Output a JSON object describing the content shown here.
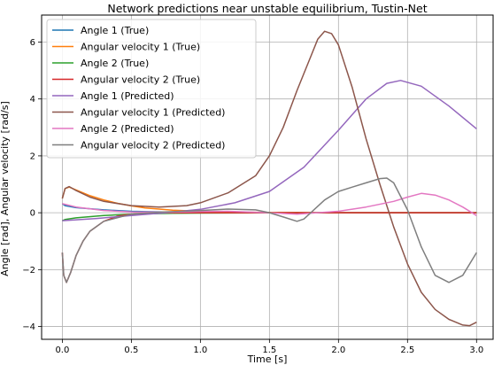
{
  "chart_data": {
    "type": "line",
    "title": "Network predictions near unstable equilibrium, Tustin-Net",
    "xlabel": "Time [s]",
    "ylabel": "Angle [rad], Angular velocity [rad/s]",
    "xlim": [
      -0.15,
      3.12
    ],
    "ylim": [
      -4.45,
      6.95
    ],
    "xticks": [
      0.0,
      0.5,
      1.0,
      1.5,
      2.0,
      2.5,
      3.0
    ],
    "xtick_labels": [
      "0.0",
      "0.5",
      "1.0",
      "1.5",
      "2.0",
      "2.5",
      "3.0"
    ],
    "yticks": [
      -4,
      -2,
      0,
      2,
      4,
      6
    ],
    "ytick_labels": [
      "−4",
      "−2",
      "0",
      "2",
      "4",
      "6"
    ],
    "grid": true,
    "legend_position": "upper-left",
    "series": [
      {
        "name": "Angle 1 (True)",
        "color": "#1f77b4",
        "x": [
          0,
          0.02,
          0.1,
          0.3,
          0.5,
          0.8,
          1.0,
          1.5,
          2.0,
          2.5,
          3.0
        ],
        "y": [
          0.32,
          0.25,
          0.18,
          0.1,
          0.05,
          0.02,
          0.01,
          0.0,
          0.0,
          0.0,
          0.0
        ]
      },
      {
        "name": "Angular velocity 1 (True)",
        "color": "#ff7f0e",
        "x": [
          0,
          0.02,
          0.05,
          0.1,
          0.2,
          0.3,
          0.4,
          0.5,
          0.6,
          0.8,
          1.0,
          1.3,
          1.5,
          2.0,
          2.5,
          3.0
        ],
        "y": [
          0.5,
          0.85,
          0.9,
          0.8,
          0.6,
          0.45,
          0.33,
          0.24,
          0.17,
          0.09,
          0.05,
          0.02,
          0.01,
          0.0,
          0.0,
          0.0
        ]
      },
      {
        "name": "Angle 2 (True)",
        "color": "#2ca02c",
        "x": [
          0,
          0.02,
          0.1,
          0.3,
          0.5,
          0.8,
          1.0,
          1.5,
          2.0,
          2.5,
          3.0
        ],
        "y": [
          -0.28,
          -0.24,
          -0.18,
          -0.1,
          -0.05,
          -0.02,
          -0.01,
          0.0,
          0.0,
          0.0,
          0.0
        ]
      },
      {
        "name": "Angular velocity 2 (True)",
        "color": "#d62728",
        "x": [
          0,
          0.01,
          0.03,
          0.06,
          0.1,
          0.15,
          0.2,
          0.3,
          0.4,
          0.5,
          0.7,
          1.0,
          1.5,
          2.0,
          2.5,
          3.0
        ],
        "y": [
          -1.4,
          -2.2,
          -2.45,
          -2.1,
          -1.5,
          -1.0,
          -0.65,
          -0.3,
          -0.12,
          -0.05,
          0.0,
          0.0,
          0.0,
          0.0,
          0.0,
          0.0
        ]
      },
      {
        "name": "Angle 1 (Predicted)",
        "color": "#9467bd",
        "x": [
          0,
          0.25,
          0.5,
          0.75,
          1.0,
          1.25,
          1.5,
          1.75,
          2.0,
          2.2,
          2.35,
          2.45,
          2.6,
          2.8,
          3.0
        ],
        "y": [
          -0.28,
          -0.2,
          -0.1,
          0.0,
          0.12,
          0.35,
          0.75,
          1.6,
          2.9,
          4.0,
          4.55,
          4.65,
          4.45,
          3.75,
          2.95
        ]
      },
      {
        "name": "Angular velocity 1 (Predicted)",
        "color": "#8c564b",
        "x": [
          0,
          0.02,
          0.05,
          0.1,
          0.2,
          0.3,
          0.5,
          0.7,
          0.9,
          1.0,
          1.2,
          1.4,
          1.5,
          1.6,
          1.7,
          1.8,
          1.85,
          1.9,
          1.95,
          2.0,
          2.1,
          2.2,
          2.3,
          2.4,
          2.5,
          2.6,
          2.7,
          2.8,
          2.9,
          2.95,
          3.0
        ],
        "y": [
          0.5,
          0.85,
          0.92,
          0.78,
          0.55,
          0.4,
          0.25,
          0.2,
          0.25,
          0.35,
          0.7,
          1.3,
          2.0,
          3.0,
          4.3,
          5.5,
          6.1,
          6.38,
          6.3,
          5.9,
          4.4,
          2.6,
          1.0,
          -0.5,
          -1.8,
          -2.8,
          -3.4,
          -3.75,
          -3.95,
          -3.97,
          -3.85
        ]
      },
      {
        "name": "Angle 2 (Predicted)",
        "color": "#e377c2",
        "x": [
          0,
          0.1,
          0.3,
          0.5,
          0.8,
          1.0,
          1.2,
          1.5,
          1.7,
          2.0,
          2.2,
          2.4,
          2.5,
          2.6,
          2.7,
          2.8,
          2.9,
          3.0
        ],
        "y": [
          0.32,
          0.2,
          0.08,
          0.03,
          0.02,
          0.04,
          0.05,
          0.0,
          -0.05,
          0.05,
          0.2,
          0.4,
          0.55,
          0.68,
          0.62,
          0.45,
          0.2,
          -0.1
        ]
      },
      {
        "name": "Angular velocity 2 (Predicted)",
        "color": "#7f7f7f",
        "x": [
          0,
          0.01,
          0.03,
          0.06,
          0.1,
          0.15,
          0.2,
          0.3,
          0.5,
          0.7,
          1.0,
          1.2,
          1.4,
          1.5,
          1.6,
          1.7,
          1.75,
          1.8,
          1.9,
          2.0,
          2.1,
          2.2,
          2.3,
          2.35,
          2.4,
          2.5,
          2.6,
          2.7,
          2.8,
          2.9,
          3.0
        ],
        "y": [
          -1.4,
          -2.2,
          -2.45,
          -2.1,
          -1.5,
          -1.0,
          -0.65,
          -0.3,
          -0.05,
          0.02,
          0.08,
          0.13,
          0.1,
          0.0,
          -0.15,
          -0.3,
          -0.22,
          0.0,
          0.45,
          0.75,
          0.9,
          1.05,
          1.2,
          1.22,
          1.05,
          0.1,
          -1.2,
          -2.2,
          -2.45,
          -2.2,
          -1.4
        ]
      }
    ]
  }
}
